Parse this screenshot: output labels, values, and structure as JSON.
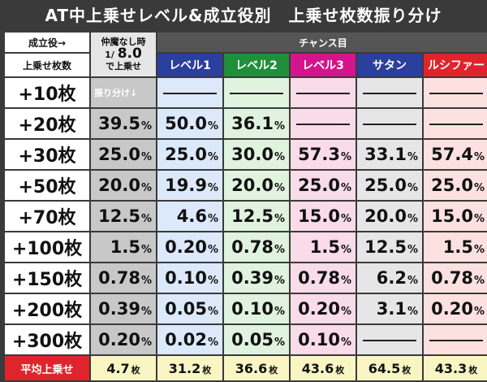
{
  "title": "AT中上乗せレベル&成立役別　上乗せ枚数振り分け",
  "header": {
    "role_label": "成立役→",
    "amount_label": "上乗せ枚数",
    "nakama_line1": "仲魔なし時",
    "nakama_prefix": "1/",
    "nakama_value": "8.0",
    "nakama_line3": "で上乗せ",
    "chance_label": "チャンス目",
    "furiwake_label": "振り分け↓",
    "columns": [
      "レベル1",
      "レベル2",
      "レベル3",
      "サタン",
      "ルシファー"
    ]
  },
  "colors": {
    "header_bg": [
      "#2b3f9c",
      "#1f8f3a",
      "#d4148c",
      "#2b3f9c",
      "#e0242c"
    ],
    "cell_bg": [
      "#c8c8c8",
      "#dbe9fb",
      "#dff3df",
      "#fadbe8",
      "#e6e6e6",
      "#fde1e1"
    ],
    "avg_label_bg": "#e0242c",
    "avg_bg": "#faf6c4"
  },
  "rows": [
    {
      "label": "+10枚",
      "values": [
        "",
        "-",
        "-",
        "-",
        "-",
        "-"
      ]
    },
    {
      "label": "+20枚",
      "values": [
        "39.5",
        "50.0",
        "36.1",
        "-",
        "-",
        "-"
      ]
    },
    {
      "label": "+30枚",
      "values": [
        "25.0",
        "25.0",
        "30.0",
        "57.3",
        "33.1",
        "57.4"
      ]
    },
    {
      "label": "+50枚",
      "values": [
        "20.0",
        "19.9",
        "20.0",
        "25.0",
        "25.0",
        "25.0"
      ]
    },
    {
      "label": "+70枚",
      "values": [
        "12.5",
        "4.6",
        "12.5",
        "15.0",
        "20.0",
        "15.0"
      ]
    },
    {
      "label": "+100枚",
      "values": [
        "1.5",
        "0.20",
        "0.78",
        "1.5",
        "12.5",
        "1.5"
      ]
    },
    {
      "label": "+150枚",
      "values": [
        "0.78",
        "0.10",
        "0.39",
        "0.78",
        "6.2",
        "0.78"
      ]
    },
    {
      "label": "+200枚",
      "values": [
        "0.39",
        "0.05",
        "0.10",
        "0.20",
        "3.1",
        "0.20"
      ]
    },
    {
      "label": "+300枚",
      "values": [
        "0.20",
        "0.02",
        "0.05",
        "0.10",
        "-",
        "-"
      ]
    }
  ],
  "average": {
    "label": "平均上乗せ",
    "values": [
      "4.7",
      "31.2",
      "36.6",
      "43.6",
      "64.5",
      "43.3"
    ],
    "unit": "枚"
  },
  "percent_unit": "%"
}
